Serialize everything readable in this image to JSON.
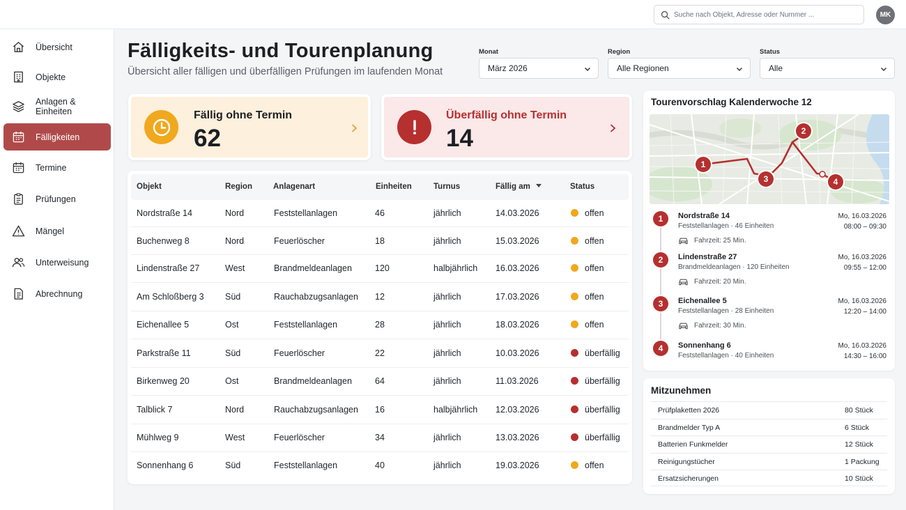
{
  "search": {
    "placeholder": "Suche nach Objekt, Adresse oder Nummer ..."
  },
  "user": {
    "initials": "MK"
  },
  "sidebar": {
    "items": [
      {
        "label": "Übersicht",
        "icon": "home-icon"
      },
      {
        "label": "Objekte",
        "icon": "building-icon"
      },
      {
        "label": "Anlagen & Einheiten",
        "icon": "layers-icon"
      },
      {
        "label": "Fälligkeiten",
        "icon": "calendar-icon",
        "active": true
      },
      {
        "label": "Termine",
        "icon": "calendar-icon"
      },
      {
        "label": "Prüfungen",
        "icon": "clipboard-icon"
      },
      {
        "label": "Mängel",
        "icon": "warning-icon"
      },
      {
        "label": "Unterweisung",
        "icon": "users-icon"
      },
      {
        "label": "Abrechnung",
        "icon": "document-icon"
      }
    ]
  },
  "header": {
    "title": "Fälligkeits- und Tourenplanung",
    "subtitle": "Übersicht aller fälligen und überfälligen Prüfungen im laufenden Monat"
  },
  "filters": {
    "month": {
      "label": "Monat",
      "value": "März 2026"
    },
    "region": {
      "label": "Region",
      "value": "Alle Regionen"
    },
    "status": {
      "label": "Status",
      "value": "Alle"
    }
  },
  "kpis": {
    "due": {
      "label": "Fällig ohne Termin",
      "value": "62",
      "color": "#f0a81e"
    },
    "overdue": {
      "label": "Überfällig ohne Termin",
      "value": "14",
      "color": "#b5302f"
    }
  },
  "table": {
    "columns": [
      "Objekt",
      "Region",
      "Anlagenart",
      "Einheiten",
      "Turnus",
      "Fällig am",
      "Status"
    ],
    "rows": [
      {
        "objekt": "Nordstraße 14",
        "region": "Nord",
        "anlagenart": "Feststellanlagen",
        "einheiten": "46",
        "turnus": "jährlich",
        "faellig": "14.03.2026",
        "status": "offen"
      },
      {
        "objekt": "Buchenweg 8",
        "region": "Nord",
        "anlagenart": "Feuerlöscher",
        "einheiten": "18",
        "turnus": "jährlich",
        "faellig": "15.03.2026",
        "status": "offen"
      },
      {
        "objekt": "Lindenstraße 27",
        "region": "West",
        "anlagenart": "Brandmeldeanlagen",
        "einheiten": "120",
        "turnus": "halbjährlich",
        "faellig": "16.03.2026",
        "status": "offen"
      },
      {
        "objekt": "Am Schloßberg 3",
        "region": "Süd",
        "anlagenart": "Rauchabzugsanlagen",
        "einheiten": "12",
        "turnus": "jährlich",
        "faellig": "17.03.2026",
        "status": "offen"
      },
      {
        "objekt": "Eichenallee 5",
        "region": "Ost",
        "anlagenart": "Feststellanlagen",
        "einheiten": "28",
        "turnus": "jährlich",
        "faellig": "18.03.2026",
        "status": "offen"
      },
      {
        "objekt": "Parkstraße 11",
        "region": "Süd",
        "anlagenart": "Feuerlöscher",
        "einheiten": "22",
        "turnus": "jährlich",
        "faellig": "10.03.2026",
        "status": "überfällig"
      },
      {
        "objekt": "Birkenweg 20",
        "region": "Ost",
        "anlagenart": "Brandmeldeanlagen",
        "einheiten": "64",
        "turnus": "jährlich",
        "faellig": "11.03.2026",
        "status": "überfällig"
      },
      {
        "objekt": "Talblick 7",
        "region": "Nord",
        "anlagenart": "Rauchabzugsanlagen",
        "einheiten": "16",
        "turnus": "halbjährlich",
        "faellig": "12.03.2026",
        "status": "überfällig"
      },
      {
        "objekt": "Mühlweg 9",
        "region": "West",
        "anlagenart": "Feuerlöscher",
        "einheiten": "34",
        "turnus": "jährlich",
        "faellig": "13.03.2026",
        "status": "überfällig"
      },
      {
        "objekt": "Sonnenhang 6",
        "region": "Süd",
        "anlagenart": "Feststellanlagen",
        "einheiten": "40",
        "turnus": "jährlich",
        "faellig": "19.03.2026",
        "status": "offen"
      }
    ],
    "status_colors": {
      "offen": "#f0a81e",
      "überfällig": "#b5302f"
    }
  },
  "tour": {
    "title": "Tourenvorschlag Kalenderwoche 12",
    "stops": [
      {
        "num": "1",
        "name": "Nordstraße 14",
        "detail": "Feststellanlagen · 46 Einheiten",
        "date": "Mo, 16.03.2026",
        "time": "08:00 – 09:30",
        "drive": "Fahrzeit: 25 Min."
      },
      {
        "num": "2",
        "name": "Lindenstraße 27",
        "detail": "Brandmeldeanlagen · 120 Einheiten",
        "date": "Mo, 16.03.2026",
        "time": "09:55 – 12:00",
        "drive": "Fahrzeit: 20 Min."
      },
      {
        "num": "3",
        "name": "Eichenallee 5",
        "detail": "Feststellanlagen · 28 Einheiten",
        "date": "Mo, 16.03.2026",
        "time": "12:20 – 14:00",
        "drive": "Fahrzeit: 30 Min."
      },
      {
        "num": "4",
        "name": "Sonnenhang 6",
        "detail": "Feststellanlagen · 40 Einheiten",
        "date": "Mo, 16.03.2026",
        "time": "14:30 – 16:00",
        "drive": ""
      }
    ]
  },
  "take_along": {
    "title": "Mitzunehmen",
    "items": [
      {
        "name": "Prüfplaketten 2026",
        "qty": "80 Stück"
      },
      {
        "name": "Brandmelder Typ A",
        "qty": "6 Stück"
      },
      {
        "name": "Batterien Funkmelder",
        "qty": "12 Stück"
      },
      {
        "name": "Reinigungstücher",
        "qty": "1 Packung"
      },
      {
        "name": "Ersatzsicherungen",
        "qty": "10 Stück"
      }
    ]
  }
}
